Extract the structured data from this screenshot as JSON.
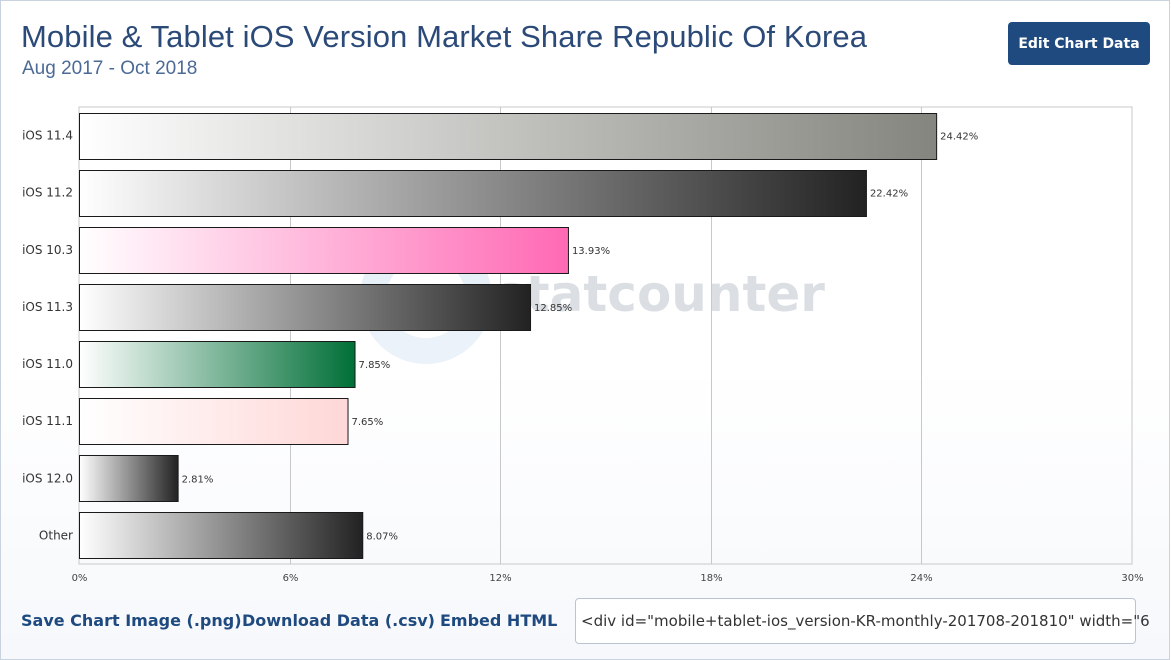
{
  "header": {
    "title": "Mobile & Tablet iOS Version Market Share Republic Of Korea",
    "subtitle": "Aug 2017 - Oct 2018",
    "edit_button_label": "Edit Chart Data"
  },
  "footer": {
    "save_image_label": "Save Chart Image (.png)",
    "download_data_label": "Download Data (.csv)",
    "embed_label": "Embed HTML",
    "embed_code": "<div id=\"mobile+tablet-ios_version-KR-monthly-201708-201810\" width=\"6"
  },
  "watermark": {
    "text": "statcounter",
    "icon": "statcounter-logo-icon"
  },
  "chart_data": {
    "type": "bar",
    "orientation": "horizontal",
    "categories": [
      "iOS 11.4",
      "iOS 11.2",
      "iOS 10.3",
      "iOS 11.3",
      "iOS 11.0",
      "iOS 11.1",
      "iOS 12.0",
      "Other"
    ],
    "values": [
      24.42,
      22.42,
      13.93,
      12.85,
      7.85,
      7.65,
      2.81,
      8.07
    ],
    "value_labels": [
      "24.42%",
      "22.42%",
      "13.93%",
      "12.85%",
      "7.85%",
      "7.65%",
      "2.81%",
      "8.07%"
    ],
    "colors": [
      "#85857f",
      "#222222",
      "#ff69b4",
      "#222222",
      "#006f37",
      "#ffd7d7",
      "#222222",
      "#222222"
    ],
    "xlim": [
      0,
      30
    ],
    "xticks": [
      0,
      6,
      12,
      18,
      24,
      30
    ],
    "xtick_labels": [
      "0%",
      "6%",
      "12%",
      "18%",
      "24%",
      "30%"
    ],
    "grid": true,
    "legend": "none"
  }
}
